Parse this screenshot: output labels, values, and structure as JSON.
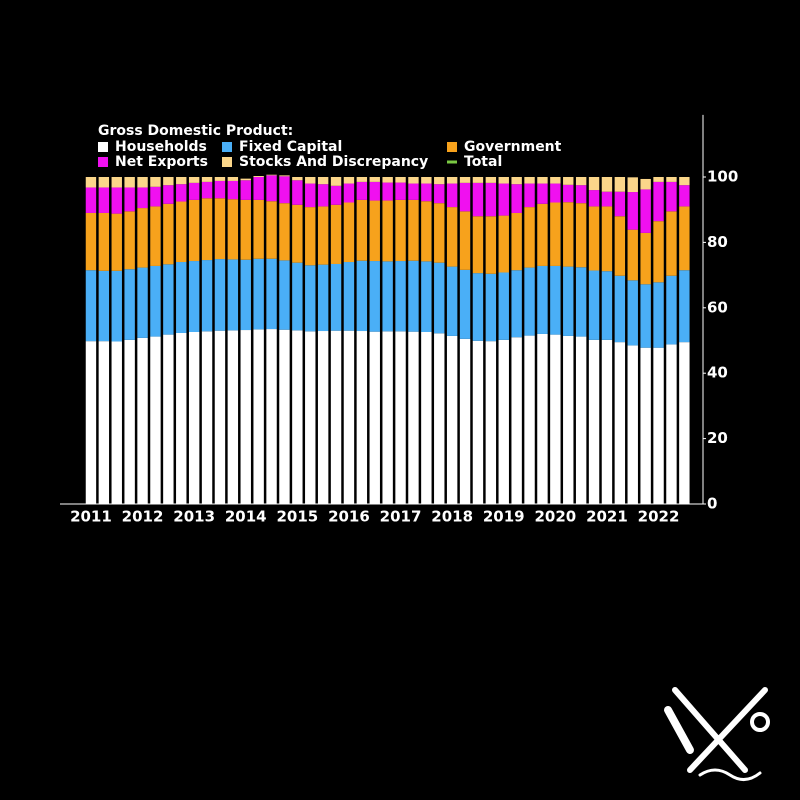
{
  "chart_data": {
    "type": "stacked-bar",
    "legend_title": "Gross Domestic Product:",
    "categories": [
      "2011",
      null,
      null,
      null,
      "2012",
      null,
      null,
      null,
      "2013",
      null,
      null,
      null,
      "2014",
      null,
      null,
      null,
      "2015",
      null,
      null,
      null,
      "2016",
      null,
      null,
      null,
      "2017",
      null,
      null,
      null,
      "2018",
      null,
      null,
      null,
      "2019",
      null,
      null,
      null,
      "2020",
      null,
      null,
      null,
      "2021",
      null,
      null,
      null,
      "2022",
      null,
      null
    ],
    "series": [
      {
        "name": "Households",
        "color": "#ffffff",
        "values": [
          49.8,
          49.8,
          49.7,
          50.2,
          50.8,
          51.2,
          51.8,
          52.3,
          52.6,
          52.8,
          53.0,
          53.1,
          53.2,
          53.4,
          53.5,
          53.3,
          53.1,
          52.8,
          52.9,
          53.0,
          53.0,
          52.9,
          52.7,
          52.8,
          52.8,
          52.7,
          52.6,
          52.2,
          51.4,
          50.5,
          49.9,
          49.8,
          50.2,
          51.0,
          51.5,
          52.0,
          51.8,
          51.4,
          51.2,
          50.2,
          50.2,
          49.5,
          48.5,
          47.8,
          47.8,
          48.8,
          49.5
        ]
      },
      {
        "name": "Fixed Capital",
        "color": "#4aaff7",
        "values": [
          21.7,
          21.5,
          21.6,
          21.6,
          21.5,
          21.6,
          21.5,
          21.7,
          21.7,
          21.8,
          21.9,
          21.7,
          21.5,
          21.6,
          21.5,
          21.2,
          20.7,
          20.2,
          20.3,
          20.4,
          21.0,
          21.5,
          21.6,
          21.4,
          21.5,
          21.7,
          21.6,
          21.6,
          21.2,
          21.1,
          20.7,
          20.6,
          20.6,
          20.5,
          20.8,
          20.8,
          21.0,
          21.2,
          21.2,
          21.2,
          21.0,
          20.3,
          19.9,
          19.4,
          20.0,
          21.0,
          22.0
        ]
      },
      {
        "name": "Government",
        "color": "#f7a21c",
        "values": [
          17.5,
          17.7,
          17.5,
          17.7,
          18.2,
          18.2,
          18.5,
          18.5,
          18.7,
          18.9,
          18.6,
          18.4,
          18.3,
          18.0,
          17.6,
          17.5,
          17.7,
          17.8,
          17.8,
          18.1,
          18.2,
          18.6,
          18.5,
          18.6,
          18.7,
          18.6,
          18.4,
          18.2,
          18.2,
          17.9,
          17.4,
          17.6,
          17.4,
          17.5,
          18.5,
          19.0,
          19.4,
          19.7,
          19.6,
          19.6,
          19.8,
          18.2,
          15.5,
          15.7,
          18.7,
          19.7,
          19.5
        ]
      },
      {
        "name": "Net Exports",
        "color": "#f010f0",
        "values": [
          7.8,
          7.8,
          8.0,
          7.3,
          6.3,
          6.0,
          5.7,
          5.3,
          5.2,
          5.0,
          5.3,
          5.6,
          6.0,
          7.0,
          7.9,
          8.2,
          7.5,
          7.2,
          6.8,
          5.8,
          5.8,
          5.5,
          5.7,
          5.5,
          5.3,
          5.0,
          5.4,
          5.8,
          7.2,
          8.7,
          10.2,
          10.2,
          9.8,
          8.8,
          7.2,
          6.2,
          5.8,
          5.3,
          5.5,
          5.0,
          4.5,
          7.5,
          11.5,
          13.3,
          12.0,
          9.0,
          6.5
        ]
      },
      {
        "name": "Stocks And Discrepancy",
        "color": "#fbd68a",
        "values": [
          3.2,
          3.2,
          3.2,
          3.2,
          3.2,
          3.0,
          2.5,
          2.2,
          1.8,
          1.5,
          1.2,
          1.2,
          0.5,
          0.3,
          0.2,
          0.3,
          1.0,
          2.0,
          2.2,
          2.7,
          2.0,
          1.5,
          1.5,
          1.7,
          1.7,
          2.0,
          2.0,
          2.2,
          2.0,
          1.8,
          1.8,
          1.8,
          2.0,
          2.2,
          2.0,
          2.0,
          2.0,
          2.4,
          2.5,
          4.0,
          4.5,
          4.5,
          4.5,
          3.2,
          1.5,
          1.5,
          2.5
        ]
      },
      {
        "name": "Total",
        "color": "#7ac943",
        "kind": "line",
        "values": [
          null,
          null,
          null,
          null,
          null,
          null,
          null,
          null,
          null,
          null,
          null,
          null,
          null,
          null,
          null,
          null,
          null,
          null,
          null,
          null,
          null,
          null,
          null,
          null,
          null,
          null,
          null,
          null,
          null,
          null,
          null,
          null,
          null,
          null,
          null,
          null,
          null,
          null,
          null,
          null,
          null,
          null,
          null,
          null,
          null,
          null,
          null
        ]
      }
    ],
    "ylim": [
      0,
      119
    ],
    "yticks": [
      0,
      20,
      40,
      60,
      80,
      100
    ],
    "y_axis_side": "right",
    "grid": false
  }
}
